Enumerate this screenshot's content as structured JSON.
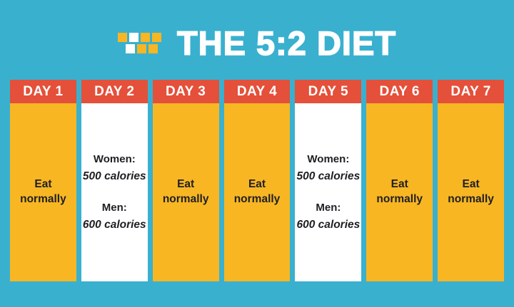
{
  "title": "THE 5:2 DIET",
  "logo": {
    "name": "pixel-grid-logo",
    "rows": [
      [
        "yellow",
        "white",
        "yellow",
        "yellow"
      ],
      [
        "white",
        "yellow",
        "yellow"
      ]
    ]
  },
  "colors": {
    "background": "#3AB0CF",
    "day_header": "#E4503A",
    "normal_day_fill": "#F8B623",
    "fast_day_fill": "#FFFFFF",
    "title_text": "#FFFFFF",
    "body_text": "#1E1F23"
  },
  "days": [
    {
      "label": "DAY 1",
      "type": "normal",
      "line1": "Eat",
      "line2": "normally"
    },
    {
      "label": "DAY 2",
      "type": "fast",
      "women_label": "Women:",
      "women_calories": "500 calories",
      "men_label": "Men:",
      "men_calories": "600 calories"
    },
    {
      "label": "DAY 3",
      "type": "normal",
      "line1": "Eat",
      "line2": "normally"
    },
    {
      "label": "DAY 4",
      "type": "normal",
      "line1": "Eat",
      "line2": "normally"
    },
    {
      "label": "DAY 5",
      "type": "fast",
      "women_label": "Women:",
      "women_calories": "500 calories",
      "men_label": "Men:",
      "men_calories": "600 calories"
    },
    {
      "label": "DAY 6",
      "type": "normal",
      "line1": "Eat",
      "line2": "normally"
    },
    {
      "label": "DAY 7",
      "type": "normal",
      "line1": "Eat",
      "line2": "normally"
    }
  ]
}
